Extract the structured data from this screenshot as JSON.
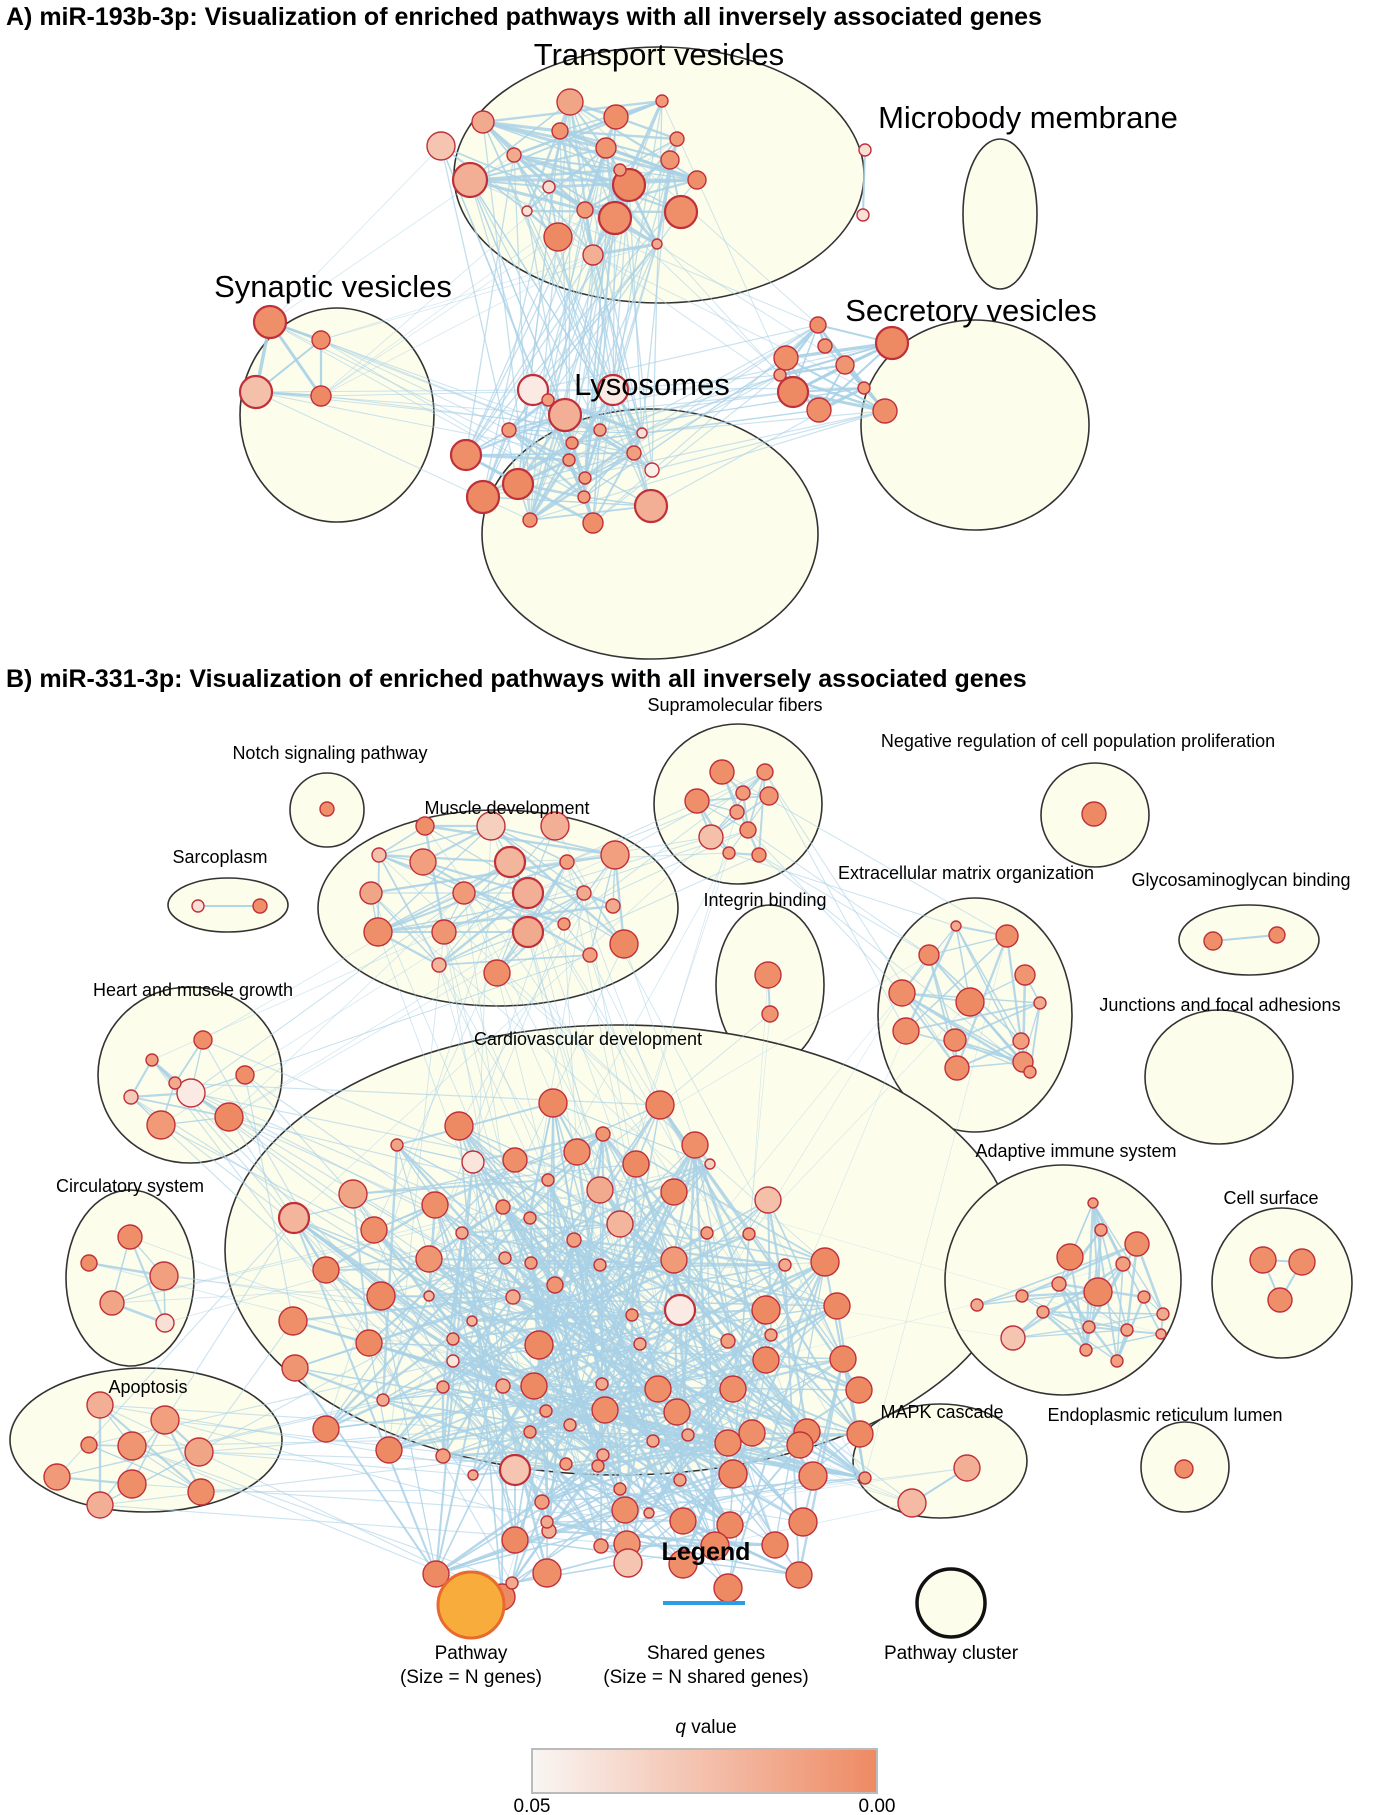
{
  "panel_a": {
    "title": "A) miR-193b-3p: Visualization of enriched pathways with all inversely associated genes",
    "clusters": [
      {
        "label": "Transport vesicles"
      },
      {
        "label": "Microbody membrane"
      },
      {
        "label": "Synaptic vesicles"
      },
      {
        "label": "Secretory vesicles"
      },
      {
        "label": "Lysosomes"
      }
    ]
  },
  "panel_b": {
    "title": "B) miR-331-3p: Visualization of enriched pathways with all inversely associated genes",
    "clusters": [
      {
        "label": "Notch signaling pathway"
      },
      {
        "label": "Supramolecular fibers"
      },
      {
        "label": "Negative regulation of cell population proliferation"
      },
      {
        "label": "Sarcoplasm"
      },
      {
        "label": "Muscle development"
      },
      {
        "label": "Integrin binding"
      },
      {
        "label": "Extracellular matrix organization"
      },
      {
        "label": "Glycosaminoglycan binding"
      },
      {
        "label": "Heart and muscle growth"
      },
      {
        "label": "Cardiovascular development"
      },
      {
        "label": "Junctions and focal adhesions"
      },
      {
        "label": "Circulatory system"
      },
      {
        "label": "Adaptive immune system"
      },
      {
        "label": "Cell surface"
      },
      {
        "label": "Apoptosis"
      },
      {
        "label": "MAPK cascade"
      },
      {
        "label": "Endoplasmic reticulum lumen"
      }
    ]
  },
  "legend": {
    "title": "Legend",
    "pathway": {
      "line1": "Pathway",
      "line2": "(Size = N genes)"
    },
    "shared": {
      "line1": "Shared genes",
      "line2": "(Size = N shared genes)"
    },
    "cluster": {
      "line1": "Pathway cluster"
    },
    "qscale": {
      "title_var": "q",
      "title_rest": " value",
      "min_label": "0.05",
      "max_label": "0.00"
    }
  },
  "colors": {
    "edge": "#a9d1e6",
    "cluster_fill": "#fdfdec",
    "node_low_q": "#ee8a63",
    "node_high_q": "#fbf5f1",
    "node_border": "#c0303a",
    "legend_pathway_fill": "#f7ac3c",
    "legend_pathway_border": "#e86a2c",
    "legend_edge": "#2a9ee2"
  }
}
